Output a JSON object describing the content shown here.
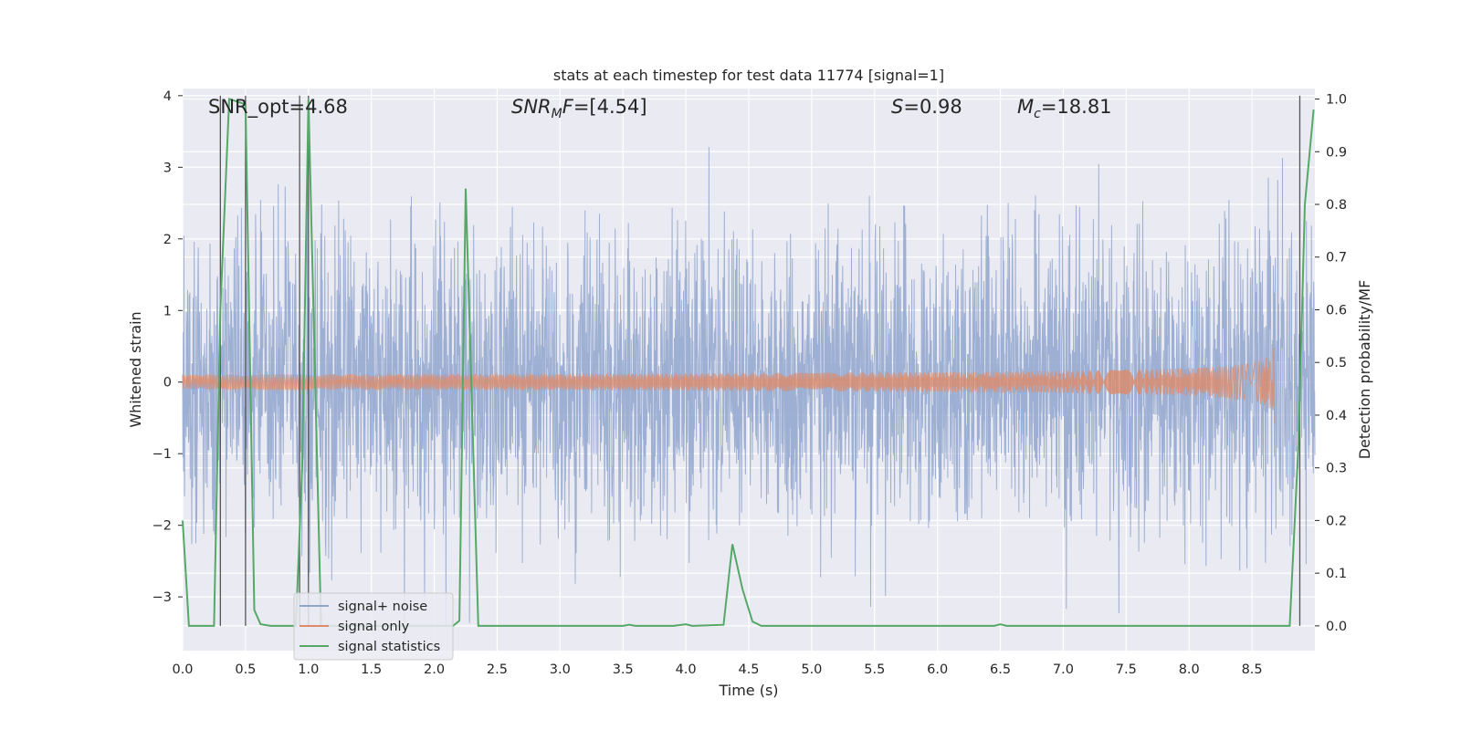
{
  "chart_data": {
    "type": "line",
    "title": "stats at each timestep for test data 11774 [signal=1]",
    "xlabel": "Time (s)",
    "ylabel": "Whitened strain",
    "ylabel_right": "Detection probability/MF",
    "xlim": [
      0.0,
      9.0
    ],
    "ylim": [
      -3.75,
      4.1
    ],
    "ylim_right": [
      -0.047,
      1.02
    ],
    "x_ticks": [
      "0.0",
      "0.5",
      "1.0",
      "1.5",
      "2.0",
      "2.5",
      "3.0",
      "3.5",
      "4.0",
      "4.5",
      "5.0",
      "5.5",
      "6.0",
      "6.5",
      "7.0",
      "7.5",
      "8.0",
      "8.5"
    ],
    "y_ticks": [
      "4",
      "3",
      "2",
      "1",
      "0",
      "−1",
      "−2",
      "−3"
    ],
    "y_ticks_right": [
      "1.0",
      "0.9",
      "0.8",
      "0.7",
      "0.6",
      "0.5",
      "0.4",
      "0.3",
      "0.2",
      "0.1",
      "0.0"
    ],
    "grid": true,
    "legend_position": "lower-left",
    "annotations": {
      "snr_opt": "SNR_opt=4.68",
      "snr_mf_sym": "SNR",
      "snr_mf_sub": "M",
      "snr_mf_sym2": "F",
      "snr_mf_val": "=[4.54]",
      "s_sym": "S",
      "s_val": "=0.98",
      "mc_sym": "M",
      "mc_sub": "c",
      "mc_val": "=18.81"
    },
    "series": [
      {
        "name": "signal+ noise",
        "color": "#8fa5cc",
        "x_range": [
          0.0,
          9.0
        ],
        "std": 1.0,
        "max_abs": 4.0
      },
      {
        "name": "signal only",
        "color": "#dd8b6a",
        "chirp_end": 8.68,
        "peak_amplitude": 0.95
      },
      {
        "name": "signal statistics",
        "color": "#55a868",
        "axis": "right",
        "x": [
          0.0,
          0.05,
          0.25,
          0.3,
          0.37,
          0.5,
          0.57,
          0.62,
          0.7,
          0.9,
          0.95,
          1.0,
          1.1,
          1.2,
          1.6,
          2.0,
          2.15,
          2.2,
          2.25,
          2.35,
          2.4,
          3.0,
          3.5,
          3.55,
          3.6,
          3.9,
          4.0,
          4.05,
          4.3,
          4.37,
          4.45,
          4.53,
          4.6,
          5.0,
          6.0,
          6.45,
          6.5,
          6.55,
          7.0,
          8.0,
          8.8,
          8.87,
          8.92,
          8.99
        ],
        "y": [
          0.2,
          0.0,
          0.0,
          0.6,
          1.0,
          0.99,
          0.03,
          0.003,
          0.0,
          0.0,
          0.3,
          1.0,
          0.0,
          0.0,
          0.0,
          0.0,
          0.0,
          0.01,
          0.83,
          0.0,
          0.0,
          0.0,
          0.0,
          0.002,
          0.0,
          0.0,
          0.003,
          0.0,
          0.002,
          0.155,
          0.07,
          0.008,
          0.0,
          0.0,
          0.0,
          0.0,
          0.003,
          0.0,
          0.0,
          0.0,
          0.0,
          0.35,
          0.8,
          0.98
        ]
      }
    ],
    "vertical_markers": {
      "color": "#555555",
      "x": [
        0.3,
        0.5,
        0.93,
        1.0,
        8.88
      ]
    }
  }
}
